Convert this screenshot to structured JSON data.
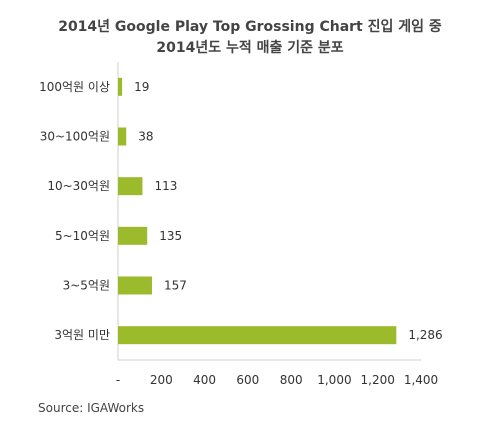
{
  "chart_data": {
    "type": "bar",
    "orientation": "horizontal",
    "title": "2014년 Google Play Top Grossing Chart 진입 게임 중",
    "subtitle": "2014년도 누적 매출 기준 분포",
    "categories": [
      "100억원 이상",
      "30~100억원",
      "10~30억원",
      "5~10억원",
      "3~5억원",
      "3억원 미만"
    ],
    "values": [
      19,
      38,
      113,
      135,
      157,
      1286
    ],
    "xlim": [
      0,
      1400
    ],
    "xticks": [
      "-",
      "200",
      "400",
      "600",
      "800",
      "1,000",
      "1,200",
      "1,400"
    ],
    "value_labels": [
      "19",
      "38",
      "113",
      "135",
      "157",
      "1,286"
    ],
    "bar_color": "#9bbb2d",
    "grid": false,
    "source": "Source: IGAWorks"
  }
}
